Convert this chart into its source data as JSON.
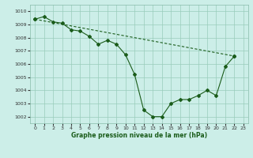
{
  "title": "Graphe pression niveau de la mer (hPa)",
  "bg_color": "#cceee8",
  "grid_color": "#99ccbb",
  "line_color": "#1a5c1a",
  "xlim": [
    -0.5,
    23.5
  ],
  "ylim": [
    1001.5,
    1010.5
  ],
  "yticks": [
    1002,
    1003,
    1004,
    1005,
    1006,
    1007,
    1008,
    1009,
    1010
  ],
  "xticks": [
    0,
    1,
    2,
    3,
    4,
    5,
    6,
    7,
    8,
    9,
    10,
    11,
    12,
    13,
    14,
    15,
    16,
    17,
    18,
    19,
    20,
    21,
    22,
    23
  ],
  "line1_x": [
    0,
    1,
    2,
    3,
    4,
    5,
    6,
    7,
    8,
    9,
    10,
    11,
    12,
    13,
    14,
    15,
    16,
    17,
    18,
    19,
    20,
    21,
    22
  ],
  "line1_y": [
    1009.4,
    1009.6,
    1009.2,
    1009.1,
    1008.6,
    1008.5,
    1008.1,
    1007.5,
    1007.8,
    1007.5,
    1006.7,
    1005.2,
    1002.5,
    1002.0,
    1002.0,
    1003.0,
    1003.3,
    1003.3,
    1003.6,
    1004.0,
    1003.6,
    1005.8,
    1006.6
  ],
  "line2_x": [
    0,
    22
  ],
  "line2_y": [
    1009.4,
    1006.6
  ],
  "marker": "D",
  "markersize": 2.0,
  "linewidth": 0.8,
  "tick_labelsize": 4.5,
  "xlabel_fontsize": 5.5
}
